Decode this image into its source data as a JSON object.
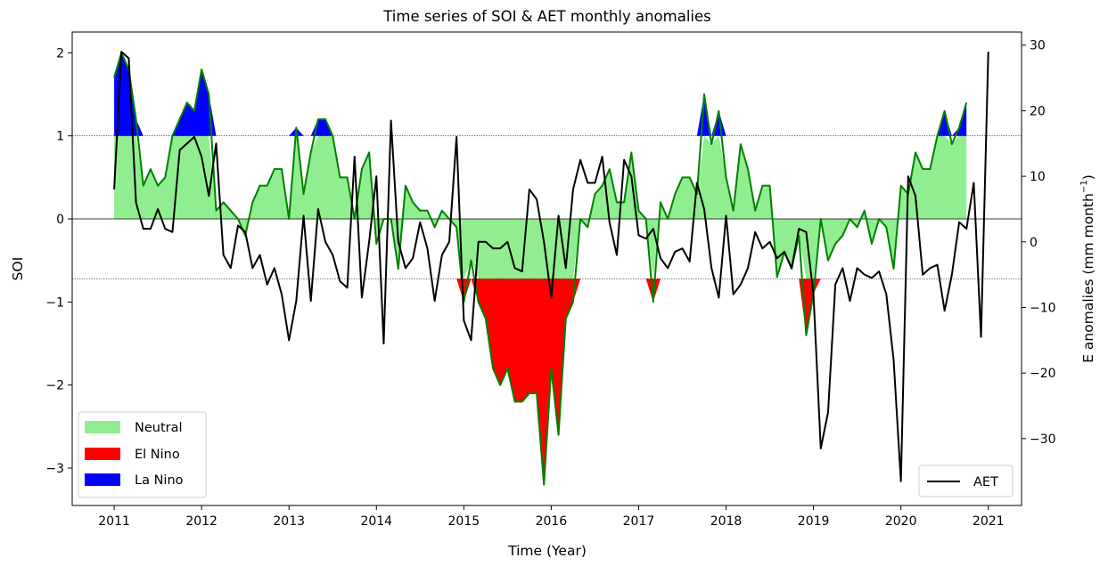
{
  "chart_data": {
    "type": "area",
    "title": "Time series of SOI & AET monthly anomalies",
    "xlabel": "Time (Year)",
    "ylabel": "SOI",
    "y2label": "E anomalies (mm month",
    "y2label_sup": "−1",
    "y2label_close": ")",
    "xlim": [
      2010.52,
      2021.38
    ],
    "ylim": [
      -3.45,
      2.25
    ],
    "y2lim": [
      -40.2,
      32.0
    ],
    "x_ticks": [
      2011,
      2012,
      2013,
      2014,
      2015,
      2016,
      2017,
      2018,
      2019,
      2020,
      2021
    ],
    "x_tick_labels": [
      "2011",
      "2012",
      "2013",
      "2014",
      "2015",
      "2016",
      "2017",
      "2018",
      "2019",
      "2020",
      "2021"
    ],
    "y_ticks": [
      2,
      1,
      0,
      -1,
      -2,
      -3
    ],
    "y_tick_labels": [
      "2",
      "1",
      "0",
      "−1",
      "−2",
      "−3"
    ],
    "y2_ticks": [
      30,
      20,
      10,
      0,
      -10,
      -20,
      -30
    ],
    "y2_tick_labels": [
      "30",
      "20",
      "10",
      "0",
      "−10",
      "−20",
      "−30"
    ],
    "thresholds": {
      "la_nina": 1.0,
      "el_nino": -0.72
    },
    "colors": {
      "neutral": "#90ee90",
      "el_nino": "#ff0000",
      "la_nina": "#0000ff",
      "soi_line": "#008000",
      "aet_line": "#000000"
    },
    "legend_left": {
      "placement": "lower-left",
      "items": [
        "Neutral",
        "El Nino",
        "La Nino"
      ]
    },
    "legend_right": {
      "placement": "lower-right",
      "items": [
        "AET"
      ]
    },
    "soi": {
      "name": "SOI",
      "start": "2011-01",
      "values": [
        1.7,
        2.0,
        1.8,
        1.2,
        0.4,
        0.6,
        0.4,
        0.5,
        1.0,
        1.2,
        1.4,
        1.3,
        1.8,
        1.5,
        0.1,
        0.2,
        0.1,
        0.0,
        -0.2,
        0.2,
        0.4,
        0.4,
        0.6,
        0.6,
        0.0,
        1.1,
        0.3,
        0.8,
        1.2,
        1.2,
        1.0,
        0.5,
        0.5,
        0.0,
        0.6,
        0.8,
        -0.3,
        0.0,
        0.0,
        -0.6,
        0.4,
        0.2,
        0.1,
        0.1,
        -0.1,
        0.1,
        0.0,
        -0.1,
        -1.0,
        -0.5,
        -1.0,
        -1.2,
        -1.8,
        -2.0,
        -1.8,
        -2.2,
        -2.2,
        -2.1,
        -2.1,
        -3.2,
        -1.8,
        -2.6,
        -1.2,
        -1.0,
        0.0,
        -0.1,
        0.3,
        0.4,
        0.6,
        0.2,
        0.2,
        0.8,
        0.1,
        0.0,
        -1.0,
        0.2,
        0.0,
        0.3,
        0.5,
        0.5,
        0.3,
        1.5,
        0.9,
        1.3,
        0.5,
        0.1,
        0.9,
        0.6,
        0.1,
        0.4,
        0.4,
        -0.7,
        -0.4,
        -0.6,
        -0.2,
        -1.4,
        -0.9,
        0.0,
        -0.5,
        -0.3,
        -0.2,
        0.0,
        -0.1,
        0.1,
        -0.3,
        0.0,
        -0.1,
        -0.6,
        0.4,
        0.3,
        0.8,
        0.6,
        0.6,
        1.0,
        1.3,
        0.9,
        1.1,
        1.4
      ]
    },
    "aet": {
      "name": "AET",
      "start": "2011-01",
      "values": [
        8,
        29,
        28,
        6,
        2,
        2,
        5,
        2,
        1.5,
        14,
        15,
        16,
        13,
        7,
        15,
        -2,
        -4,
        2.5,
        1.5,
        -4,
        -2,
        -6.5,
        -4,
        -8,
        -15,
        -9,
        4,
        -9,
        5,
        0,
        -2,
        -6,
        -7,
        13,
        -8.5,
        0,
        10,
        -15.5,
        18.5,
        0,
        -4,
        -2.5,
        3,
        -1,
        -9,
        -2,
        0,
        16,
        -12,
        -15,
        0,
        0,
        -1,
        -1,
        0,
        -4,
        -4.5,
        8,
        6.5,
        0,
        -8.5,
        4,
        -4,
        8,
        12.5,
        9,
        9,
        13,
        3,
        -2,
        12.5,
        10,
        1,
        0.5,
        2,
        -2.5,
        -4,
        -1.5,
        -1,
        -3,
        9,
        5,
        -4,
        -8.5,
        4,
        -8,
        -6.5,
        -4,
        1.5,
        -1,
        0,
        -2.5,
        -1.5,
        -4,
        2,
        1.5,
        -8,
        -31.5,
        -26,
        -6.5,
        -4,
        -9,
        -4,
        -5,
        -5.5,
        -4.5,
        -8,
        -18,
        -36.5,
        10,
        7,
        -5,
        -4,
        -3.5,
        -10.5,
        -5,
        3,
        2,
        9,
        -14.5,
        29
      ]
    }
  }
}
